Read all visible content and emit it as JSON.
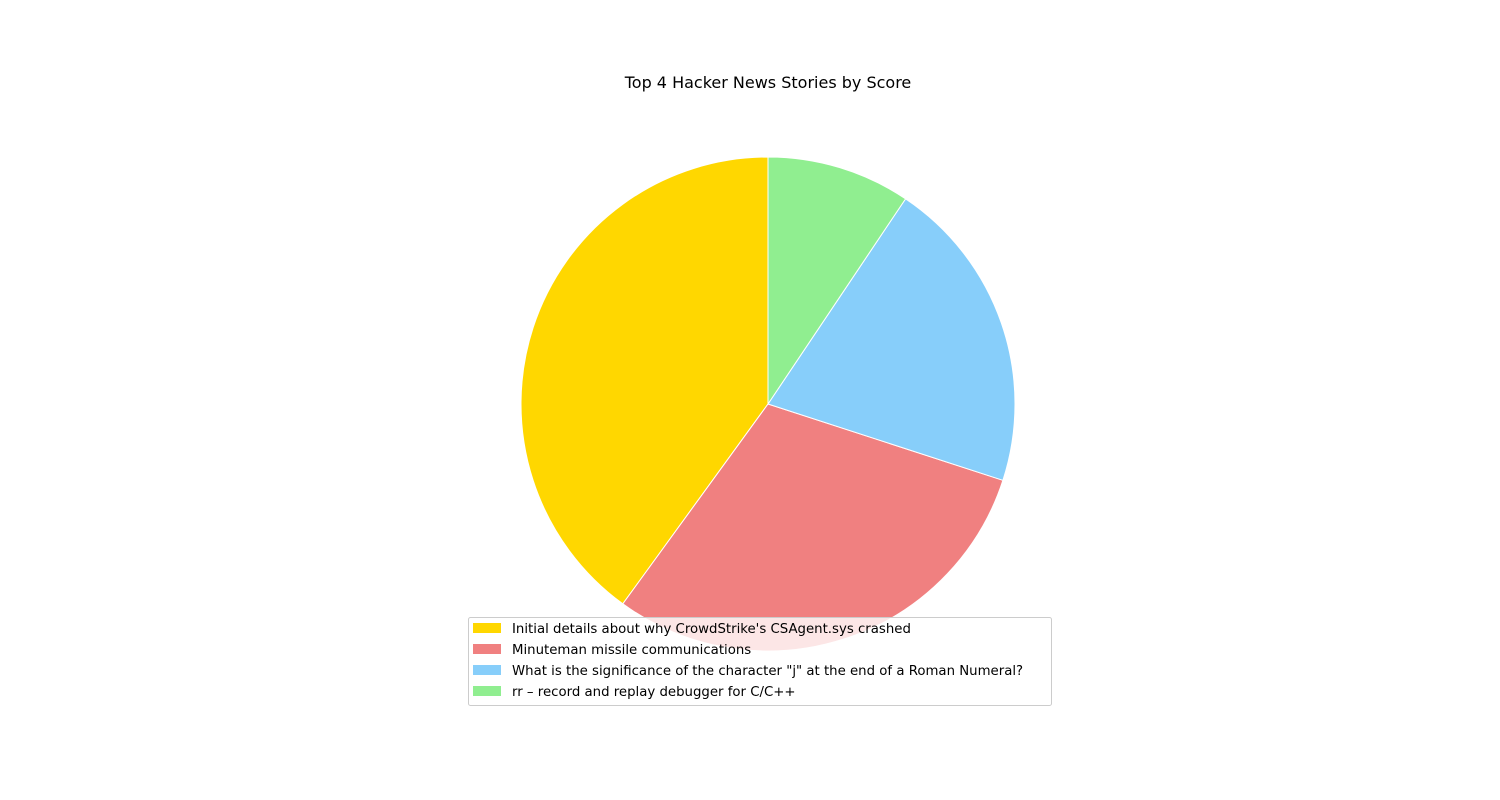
{
  "chart_data": {
    "type": "pie",
    "title": "Top 4 Hacker News Stories by Score",
    "legend_position": "lower-center",
    "start_angle_deg": 90,
    "direction": "counterclockwise",
    "slices": [
      {
        "label": "Initial details about why CrowdStrike's CSAgent.sys crashed",
        "value": 40.0,
        "color": "#FFD700"
      },
      {
        "label": "Minuteman missile communications",
        "value": 30.0,
        "color": "#F08080"
      },
      {
        "label": "What is the significance of the character \"j\" at the end of a Roman Numeral?",
        "value": 20.6,
        "color": "#87CEFA"
      },
      {
        "label": "rr – record and replay debugger for C/C++",
        "value": 9.4,
        "color": "#90EE90"
      }
    ]
  }
}
